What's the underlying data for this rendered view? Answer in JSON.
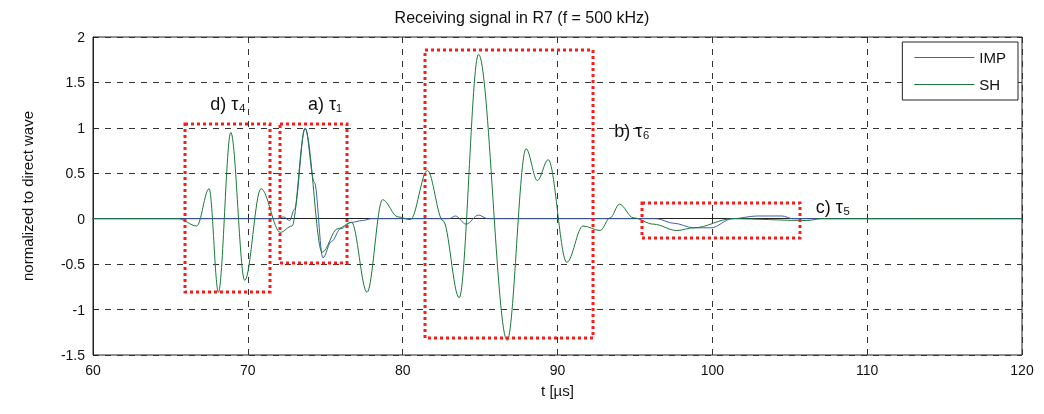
{
  "chart_data": {
    "type": "line",
    "title": "Receiving signal in R7 (f = 500 kHz)",
    "xlabel": "t [µs]",
    "ylabel": "normalized to direct wave",
    "xlim": [
      60,
      120
    ],
    "xticks": [
      60,
      70,
      80,
      90,
      100,
      110,
      120
    ],
    "ylim": [
      -1.5,
      2
    ],
    "yticks": [
      -1.5,
      -1,
      -0.5,
      0,
      0.5,
      1,
      1.5,
      2
    ],
    "grid": true,
    "legend": "top right",
    "marker": "none",
    "series": [
      {
        "name": "IMP",
        "color": "#3f5fb5",
        "x": [
          60,
          72.0,
          72.3,
          72.7,
          73.0,
          73.7,
          74.3,
          74.85,
          75.4,
          76.0,
          76.7,
          77.4,
          78.0,
          83.0,
          83.4,
          84.1,
          84.9,
          85.5,
          96.4,
          97.5,
          98.8,
          99.9,
          101.3,
          102.9,
          104.5,
          105.2,
          120
        ],
        "values": [
          0,
          0,
          0.02,
          -0.02,
          0.1,
          1.0,
          0.4,
          -0.43,
          -0.25,
          -0.11,
          -0.04,
          -0.02,
          0,
          0,
          0.03,
          -0.06,
          0.04,
          0,
          0,
          -0.05,
          -0.1,
          -0.1,
          0,
          0.03,
          0.03,
          0,
          0
        ]
      },
      {
        "name": "SH",
        "color": "#1a7a3a",
        "x": [
          60,
          65.5,
          66.7,
          67.5,
          68.1,
          68.9,
          69.8,
          70.85,
          72.1,
          72.85,
          73.7,
          74.8,
          75.8,
          76.7,
          77.7,
          78.7,
          79.7,
          80.5,
          81.6,
          82.6,
          83.65,
          84.9,
          86.75,
          87.97,
          88.7,
          89.4,
          90.6,
          91.65,
          92.75,
          93.4,
          94.0,
          94.9,
          96.2,
          97.7,
          98.8,
          101.3,
          106.1,
          107,
          120
        ],
        "values": [
          0,
          0,
          -0.08,
          0.33,
          -0.81,
          0.95,
          -0.68,
          0.33,
          -0.15,
          -0.08,
          0.99,
          -0.37,
          -0.11,
          -0.04,
          -0.81,
          0.21,
          0.02,
          -0.01,
          0.53,
          -0.02,
          -0.87,
          1.81,
          -1.34,
          0.77,
          0.42,
          0.65,
          -0.48,
          -0.08,
          -0.13,
          0.01,
          0.16,
          0.01,
          -0.06,
          -0.13,
          -0.1,
          0,
          -0.02,
          0,
          0
        ]
      }
    ],
    "annotations": [
      "d) τ₄",
      "a) τ₁",
      "b) τ₆",
      "c) τ₅"
    ]
  }
}
